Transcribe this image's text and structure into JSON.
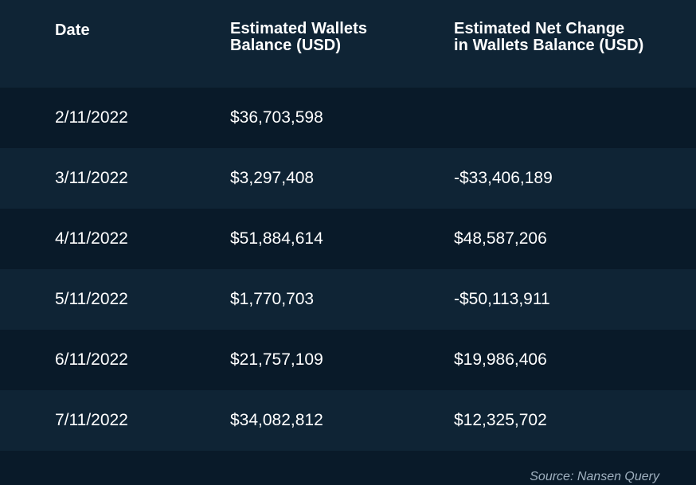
{
  "table": {
    "headers": [
      {
        "line1": "Date",
        "line2": ""
      },
      {
        "line1": "Estimated Wallets",
        "line2": "Balance (USD)"
      },
      {
        "line1": "Estimated Net Change",
        "line2": "in Wallets Balance (USD)"
      }
    ],
    "rows": [
      {
        "date": "2/11/2022",
        "balance": "$36,703,598",
        "net_change": ""
      },
      {
        "date": "3/11/2022",
        "balance": "$3,297,408",
        "net_change": "-$33,406,189"
      },
      {
        "date": "4/11/2022",
        "balance": "$51,884,614",
        "net_change": "$48,587,206"
      },
      {
        "date": "5/11/2022",
        "balance": "$1,770,703",
        "net_change": "-$50,113,911"
      },
      {
        "date": "6/11/2022",
        "balance": "$21,757,109",
        "net_change": "$19,986,406"
      },
      {
        "date": "7/11/2022",
        "balance": "$34,082,812",
        "net_change": "$12,325,702"
      }
    ]
  },
  "source": "Source: Nansen Query",
  "colors": {
    "background": "#0f2435",
    "row_dark": "#091a29",
    "text": "#ffffff",
    "source_text": "#9fb0bf"
  },
  "chart_data": {
    "type": "table",
    "columns": [
      "Date",
      "Estimated Wallets Balance (USD)",
      "Estimated Net Change in Wallets Balance (USD)"
    ],
    "rows": [
      [
        "2/11/2022",
        "$36,703,598",
        ""
      ],
      [
        "3/11/2022",
        "$3,297,408",
        "-$33,406,189"
      ],
      [
        "4/11/2022",
        "$51,884,614",
        "$48,587,206"
      ],
      [
        "5/11/2022",
        "$1,770,703",
        "-$50,113,911"
      ],
      [
        "6/11/2022",
        "$21,757,109",
        "$19,986,406"
      ],
      [
        "7/11/2022",
        "$34,082,812",
        "$12,325,702"
      ]
    ],
    "annotations": [
      "Source: Nansen Query"
    ]
  }
}
